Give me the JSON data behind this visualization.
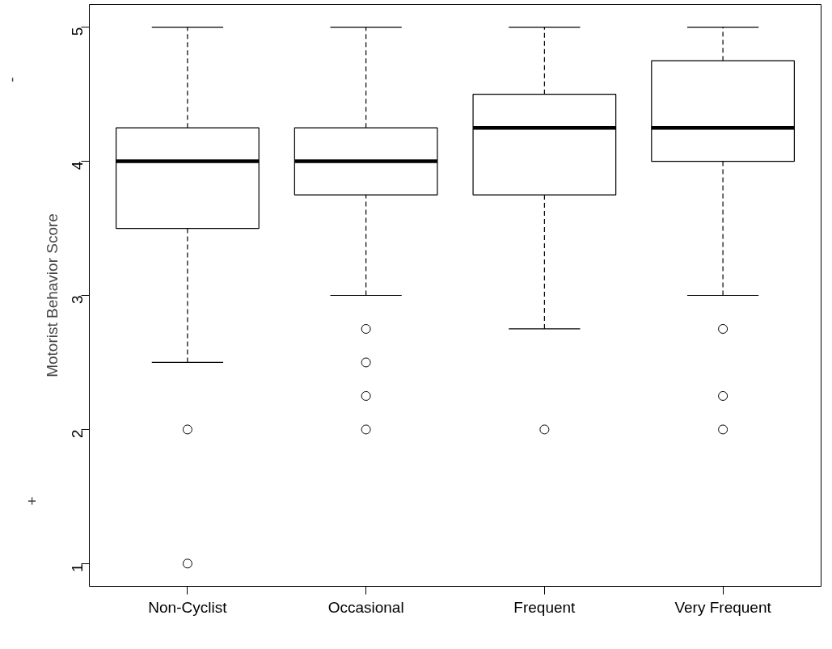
{
  "chart_data": {
    "type": "box",
    "ylabel": "Motorist Behavior Score",
    "annotations": [
      "+",
      "-"
    ],
    "categories": [
      "Non-Cyclist",
      "Occasional",
      "Frequent",
      "Very Frequent"
    ],
    "boxes": [
      {
        "low": 2.5,
        "q1": 3.5,
        "median": 4,
        "q3": 4.25,
        "high": 5,
        "outliers": [
          2,
          1
        ]
      },
      {
        "low": 3,
        "q1": 3.75,
        "median": 4,
        "q3": 4.25,
        "high": 5,
        "outliers": [
          2.75,
          2.5,
          2.25,
          2
        ]
      },
      {
        "low": 2.75,
        "q1": 3.75,
        "median": 4.25,
        "q3": 4.5,
        "high": 5,
        "outliers": [
          2
        ]
      },
      {
        "low": 3,
        "q1": 4,
        "median": 4.25,
        "q3": 4.75,
        "high": 5,
        "outliers": [
          2.75,
          2.25,
          2
        ]
      }
    ],
    "ylim": [
      0.83,
      5.17
    ],
    "yticks": [
      1,
      2,
      3,
      4,
      5
    ],
    "grid": false
  }
}
